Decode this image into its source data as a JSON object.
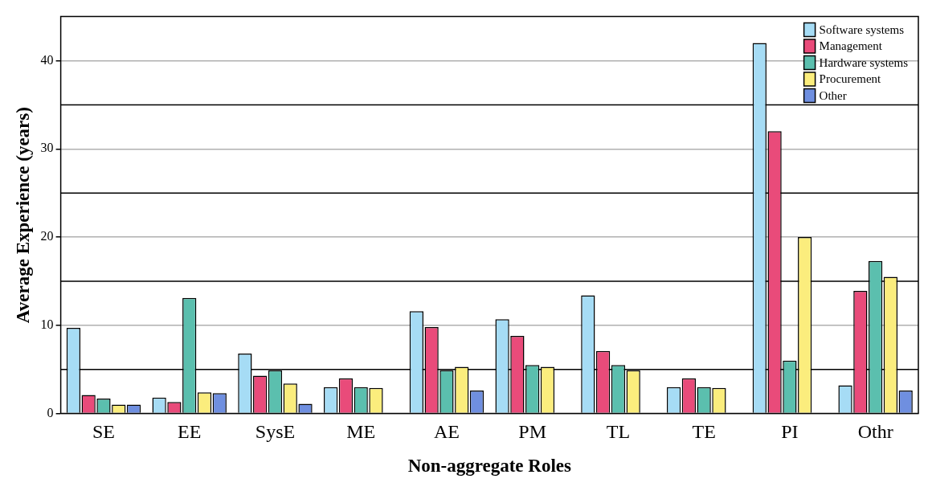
{
  "chart_data": {
    "type": "bar",
    "xlabel": "Non-aggregate Roles",
    "ylabel": "Average Experience (years)",
    "categories": [
      "SE",
      "EE",
      "SysE",
      "ME",
      "AE",
      "PM",
      "TL",
      "TE",
      "PI",
      "Othr"
    ],
    "series": [
      {
        "name": "Software systems",
        "color": "#a6dcf5",
        "values": [
          9.7,
          1.8,
          6.8,
          3.0,
          11.6,
          10.7,
          13.4,
          3.0,
          42.0,
          3.2
        ]
      },
      {
        "name": "Management",
        "color": "#e94b7a",
        "values": [
          2.1,
          1.3,
          4.3,
          4.0,
          9.8,
          8.8,
          7.1,
          4.0,
          32.0,
          13.9
        ]
      },
      {
        "name": "Hardware systems",
        "color": "#5bbfae",
        "values": [
          1.7,
          13.1,
          4.9,
          3.0,
          4.9,
          5.5,
          5.5,
          3.0,
          6.0,
          17.3
        ]
      },
      {
        "name": "Procurement",
        "color": "#fbed7d",
        "values": [
          1.0,
          2.4,
          3.4,
          2.9,
          5.3,
          5.3,
          4.9,
          2.9,
          20.0,
          15.5
        ]
      },
      {
        "name": "Other",
        "color": "#6f8fe0",
        "values": [
          1.0,
          2.3,
          1.1,
          0,
          2.6,
          0,
          0,
          0,
          0,
          2.6
        ]
      }
    ],
    "ylim": [
      0,
      45
    ],
    "yticks": [
      0,
      10,
      20,
      30,
      40
    ],
    "grid": "y",
    "legend": "top right",
    "ref_lines": [
      {
        "axis": "y",
        "value": 5,
        "color": "#000000"
      },
      {
        "axis": "y",
        "value": 15,
        "color": "#000000"
      },
      {
        "axis": "y",
        "value": 25,
        "color": "#000000"
      },
      {
        "axis": "y",
        "value": 35,
        "color": "#000000"
      }
    ]
  }
}
